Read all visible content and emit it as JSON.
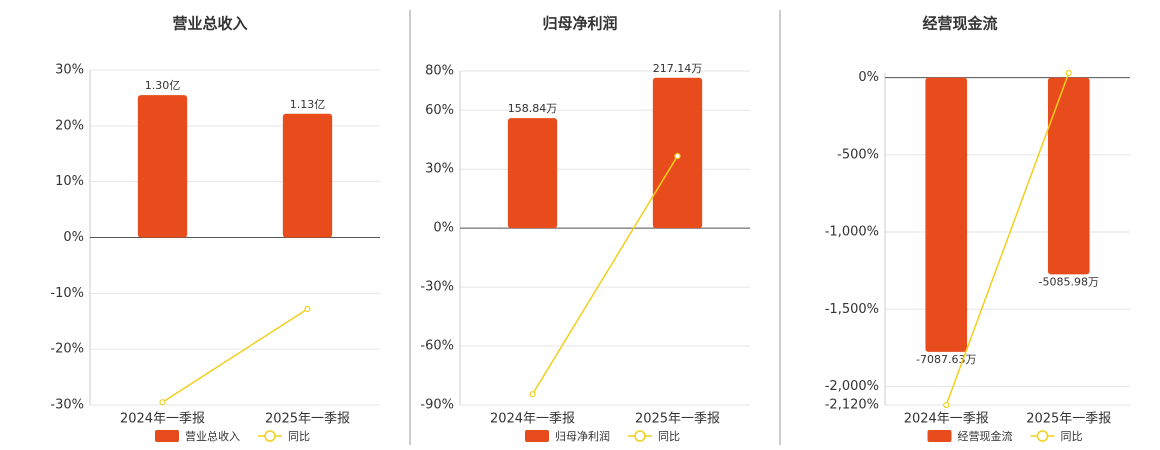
{
  "chart_data": [
    {
      "type": "bar-line",
      "title": "营业总收入",
      "categories": [
        "2024年一季报",
        "2025年一季报"
      ],
      "ylim": [
        -30,
        30
      ],
      "yticks": [
        {
          "value": -30,
          "label": "-30%"
        },
        {
          "value": -20,
          "label": "-20%"
        },
        {
          "value": -10,
          "label": "-10%"
        },
        {
          "value": 0,
          "label": "0%"
        },
        {
          "value": 10,
          "label": "10%"
        },
        {
          "value": 20,
          "label": "20%"
        },
        {
          "value": 30,
          "label": "30%"
        }
      ],
      "y2lim": [
        -1.53,
        1.53
      ],
      "series": [
        {
          "name": "营业总收入",
          "type": "bar",
          "axis": "y2",
          "color": "#e84c1d",
          "values": [
            1.3,
            1.13
          ],
          "value_labels": [
            "1.30亿",
            "1.13亿"
          ]
        },
        {
          "name": "同比",
          "type": "line",
          "color": "#f2cf1c",
          "values": [
            -29.5,
            -12.8
          ]
        }
      ]
    },
    {
      "type": "bar-line",
      "title": "归母净利润",
      "categories": [
        "2024年一季报",
        "2025年一季报"
      ],
      "ylim": [
        -90,
        80
      ],
      "yticks": [
        {
          "value": -90,
          "label": "-90%"
        },
        {
          "value": -60,
          "label": "-60%"
        },
        {
          "value": -30,
          "label": "-30%"
        },
        {
          "value": 0,
          "label": "0%"
        },
        {
          "value": 30,
          "label": "30%"
        },
        {
          "value": 60,
          "label": "60%"
        },
        {
          "value": 80,
          "label": "80%"
        }
      ],
      "y2lim": [
        -255.3,
        226.9
      ],
      "series": [
        {
          "name": "归母净利润",
          "type": "bar",
          "axis": "y2",
          "color": "#e84c1d",
          "values": [
            158.84,
            217.14
          ],
          "value_labels": [
            "158.84万",
            "217.14万"
          ]
        },
        {
          "name": "同比",
          "type": "line",
          "color": "#f2cf1c",
          "values": [
            -84.5,
            36.7
          ]
        }
      ]
    },
    {
      "type": "bar-line",
      "title": "经营现金流",
      "categories": [
        "2024年一季报",
        "2025年一季报"
      ],
      "ylim": [
        -2120,
        30
      ],
      "yticks": [
        {
          "value": -2120,
          "label": "-2,120%"
        },
        {
          "value": -2000,
          "label": "-2,000%"
        },
        {
          "value": -1500,
          "label": "-1,500%"
        },
        {
          "value": -1000,
          "label": "-1,000%"
        },
        {
          "value": -500,
          "label": "-500%"
        },
        {
          "value": 0,
          "label": "0%"
        }
      ],
      "y2lim": [
        -8461,
        120
      ],
      "series": [
        {
          "name": "经营现金流",
          "type": "bar",
          "axis": "y2",
          "color": "#e84c1d",
          "values": [
            -7087.63,
            -5085.98
          ],
          "value_labels": [
            "-7087.63万",
            "-5085.98万"
          ]
        },
        {
          "name": "同比",
          "type": "line",
          "color": "#f2cf1c",
          "values": [
            -2120,
            30
          ]
        }
      ]
    }
  ]
}
